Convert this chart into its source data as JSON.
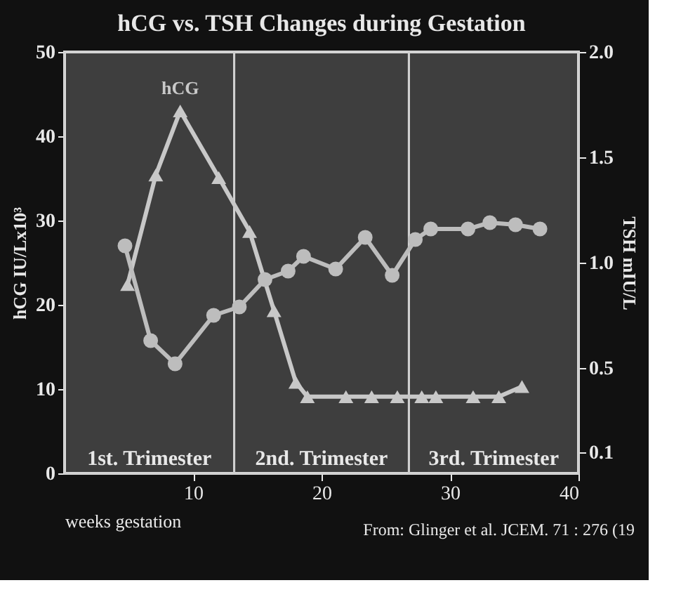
{
  "chart_data": {
    "type": "line",
    "title": "hCG vs. TSH Changes during Gestation",
    "xlabel": "weeks gestation",
    "ylabel": "hCG IU/Lx10³",
    "y2label": "TSH mIU/L",
    "xlim": [
      0,
      40
    ],
    "xticks": [
      10,
      20,
      30,
      40
    ],
    "ylim": [
      0,
      50
    ],
    "yticks": [
      0,
      10,
      20,
      30,
      40,
      50
    ],
    "y2lim": [
      0,
      2
    ],
    "y2ticks": [
      0.1,
      0.5,
      {
        "value": 1,
        "label": "1.0"
      },
      1.5,
      {
        "value": 2,
        "label": "2.0"
      }
    ],
    "series": [
      {
        "name": "hCG",
        "color": "#c8c8c8",
        "marker": "triangle",
        "line_style": "solid",
        "x": [
          4.9,
          7.1,
          9.0,
          12.0,
          14.4,
          16.3,
          18.0,
          18.9,
          21.9,
          23.9,
          25.9,
          27.8,
          28.9,
          31.8,
          33.8,
          35.6
        ],
        "values": [
          22.4,
          35.4,
          43,
          35.1,
          28.7,
          19.3,
          10.8,
          9.1,
          9.1,
          9.1,
          9.1,
          9.1,
          9.1,
          9.1,
          9.1,
          10.3
        ]
      },
      {
        "color": "#bdbdbd",
        "axis": "y2",
        "marker": "circle",
        "line_style": "solid",
        "x": [
          4.7,
          6.7,
          8.6,
          11.6,
          13.6,
          15.6,
          17.4,
          18.6,
          21.1,
          23.4,
          25.5,
          27.3,
          28.5,
          31.4,
          33.1,
          35.1,
          37.0
        ],
        "values": [
          1.08,
          0.63,
          0.52,
          0.75,
          0.79,
          0.92,
          0.96,
          1.03,
          0.97,
          1.12,
          0.94,
          1.11,
          1.16,
          1.16,
          1.19,
          1.18,
          1.16
        ]
      }
    ],
    "bands": [
      {
        "axis": "x",
        "from": 0,
        "to": 13.2,
        "label": "1st. Trimester",
        "color": "#d0d0d0"
      },
      {
        "axis": "x",
        "from": 13.2,
        "to": 26.8,
        "label": "2nd. Trimester",
        "color": "#d0d0d0"
      },
      {
        "axis": "x",
        "from": 26.8,
        "to": 40,
        "label": "3rd. Trimester",
        "color": "#d0d0d0"
      }
    ],
    "annotations": [
      "From: Glinger et al. JCEM. 71 : 276 (19"
    ],
    "grid": false
  }
}
